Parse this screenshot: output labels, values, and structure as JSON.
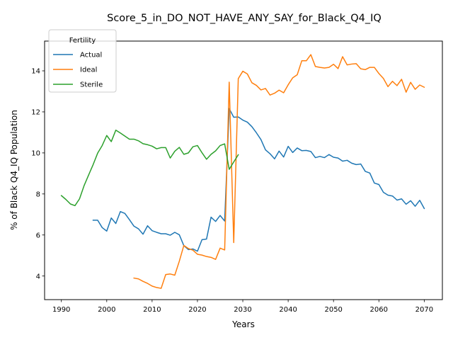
{
  "chart_data": {
    "type": "line",
    "title": "Score_5_in_DO_NOT_HAVE_ANY_SAY_for_Black_Q4_IQ",
    "xlabel": "Years",
    "ylabel": "% of Black Q4_IQ Population",
    "xlim": [
      1986.3,
      2074
    ],
    "ylim": [
      2.85,
      15.45
    ],
    "xticks": [
      1990,
      2000,
      2010,
      2020,
      2030,
      2040,
      2050,
      2060,
      2070
    ],
    "yticks": [
      4,
      6,
      8,
      10,
      12,
      14
    ],
    "grid": false,
    "legend": {
      "title": "Fertility",
      "placement": "top-left"
    },
    "series": [
      {
        "name": "Actual",
        "color": "#1f77b4",
        "x": [
          1997,
          1998,
          1999,
          2000,
          2001,
          2002,
          2003,
          2004,
          2005,
          2006,
          2007,
          2008,
          2009,
          2010,
          2011,
          2012,
          2013,
          2014,
          2015,
          2016,
          2017,
          2018,
          2019,
          2020,
          2021,
          2022,
          2023,
          2024,
          2025,
          2026,
          2027,
          2028,
          2029,
          2030,
          2031,
          2032,
          2033,
          2034,
          2035,
          2036,
          2037,
          2038,
          2039,
          2040,
          2041,
          2042,
          2043,
          2044,
          2045,
          2046,
          2047,
          2048,
          2049,
          2050,
          2051,
          2052,
          2053,
          2054,
          2055,
          2056,
          2057,
          2058,
          2059,
          2060,
          2061,
          2062,
          2063,
          2064,
          2065,
          2066,
          2067,
          2068,
          2069,
          2070
        ],
        "y": [
          6.72,
          6.72,
          6.36,
          6.19,
          6.83,
          6.56,
          7.14,
          7.05,
          6.75,
          6.43,
          6.3,
          6.04,
          6.45,
          6.21,
          6.13,
          6.06,
          6.06,
          5.99,
          6.13,
          6.01,
          5.48,
          5.29,
          5.32,
          5.21,
          5.77,
          5.8,
          6.87,
          6.66,
          6.95,
          6.68,
          12.16,
          11.74,
          11.75,
          11.6,
          11.5,
          11.28,
          10.98,
          10.65,
          10.15,
          9.96,
          9.71,
          10.09,
          9.8,
          10.32,
          10.02,
          10.24,
          10.11,
          10.12,
          10.07,
          9.77,
          9.83,
          9.77,
          9.92,
          9.79,
          9.75,
          9.6,
          9.64,
          9.5,
          9.43,
          9.46,
          9.1,
          9.02,
          8.53,
          8.46,
          8.08,
          7.94,
          7.9,
          7.7,
          7.76,
          7.5,
          7.67,
          7.4,
          7.69,
          7.29
        ]
      },
      {
        "name": "Ideal",
        "color": "#ff7f0e",
        "x": [
          2006,
          2007,
          2008,
          2009,
          2010,
          2011,
          2012,
          2013,
          2014,
          2015,
          2016,
          2017,
          2018,
          2019,
          2020,
          2021,
          2022,
          2023,
          2024,
          2025,
          2026,
          2027,
          2028,
          2029,
          2030,
          2031,
          2032,
          2033,
          2034,
          2035,
          2036,
          2037,
          2038,
          2039,
          2040,
          2041,
          2042,
          2043,
          2044,
          2045,
          2046,
          2047,
          2048,
          2049,
          2050,
          2051,
          2052,
          2053,
          2054,
          2055,
          2056,
          2057,
          2058,
          2059,
          2060,
          2061,
          2062,
          2063,
          2064,
          2065,
          2066,
          2067,
          2068,
          2069,
          2070
        ],
        "y": [
          3.9,
          3.86,
          3.74,
          3.64,
          3.51,
          3.44,
          3.4,
          4.07,
          4.1,
          4.04,
          4.72,
          5.49,
          5.34,
          5.26,
          5.06,
          5.02,
          4.95,
          4.91,
          4.81,
          5.36,
          5.27,
          13.45,
          5.63,
          13.62,
          13.98,
          13.85,
          13.42,
          13.29,
          13.07,
          13.14,
          12.82,
          12.91,
          13.06,
          12.93,
          13.32,
          13.66,
          13.81,
          14.49,
          14.49,
          14.79,
          14.21,
          14.17,
          14.14,
          14.17,
          14.32,
          14.11,
          14.69,
          14.29,
          14.33,
          14.35,
          14.1,
          14.06,
          14.17,
          14.17,
          13.87,
          13.63,
          13.23,
          13.49,
          13.28,
          13.59,
          12.96,
          13.44,
          13.1,
          13.31,
          13.2
        ]
      },
      {
        "name": "Sterile",
        "color": "#2ca02c",
        "x": [
          1990,
          1991,
          1992,
          1993,
          1994,
          1995,
          1996,
          1997,
          1998,
          1999,
          2000,
          2001,
          2002,
          2003,
          2004,
          2005,
          2006,
          2007,
          2008,
          2009,
          2010,
          2011,
          2012,
          2013,
          2014,
          2015,
          2016,
          2017,
          2018,
          2019,
          2020,
          2021,
          2022,
          2023,
          2024,
          2025,
          2026,
          2027,
          2028,
          2029
        ],
        "y": [
          7.92,
          7.73,
          7.51,
          7.43,
          7.76,
          8.4,
          8.92,
          9.43,
          9.99,
          10.36,
          10.85,
          10.55,
          11.11,
          10.97,
          10.82,
          10.67,
          10.67,
          10.59,
          10.45,
          10.4,
          10.33,
          10.2,
          10.26,
          10.26,
          9.75,
          10.08,
          10.27,
          9.93,
          10.0,
          10.3,
          10.36,
          10.01,
          9.69,
          9.93,
          10.1,
          10.36,
          10.44,
          9.2,
          9.56,
          9.91
        ]
      }
    ]
  }
}
